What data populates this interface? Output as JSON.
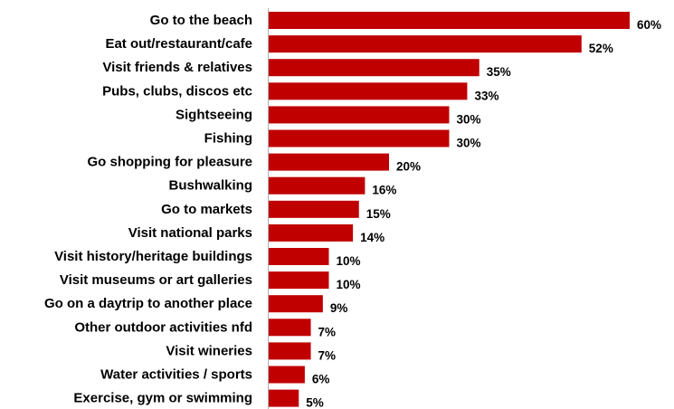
{
  "chart_data": {
    "type": "bar",
    "orientation": "horizontal",
    "categories": [
      "Go to the beach",
      "Eat out/restaurant/cafe",
      "Visit friends & relatives",
      "Pubs, clubs, discos etc",
      "Sightseeing",
      "Fishing",
      "Go shopping for pleasure",
      "Bushwalking",
      "Go to markets",
      "Visit national parks",
      "Visit history/heritage buildings",
      "Visit museums or art galleries",
      "Go on a daytrip to another place",
      "Other outdoor activities nfd",
      "Visit wineries",
      "Water activities / sports",
      "Exercise, gym or swimming"
    ],
    "values": [
      60,
      52,
      35,
      33,
      30,
      30,
      20,
      16,
      15,
      14,
      10,
      10,
      9,
      7,
      7,
      6,
      5
    ],
    "value_labels": [
      "60%",
      "52%",
      "35%",
      "33%",
      "30%",
      "30%",
      "20%",
      "16%",
      "15%",
      "14%",
      "10%",
      "10%",
      "9%",
      "7%",
      "7%",
      "6%",
      "5%"
    ],
    "bar_color": "#c00000",
    "axis_color": "#b0b0b0",
    "xlim": [
      0,
      60
    ],
    "grid": false,
    "legend": "none",
    "title": "",
    "xlabel": "",
    "ylabel": ""
  }
}
